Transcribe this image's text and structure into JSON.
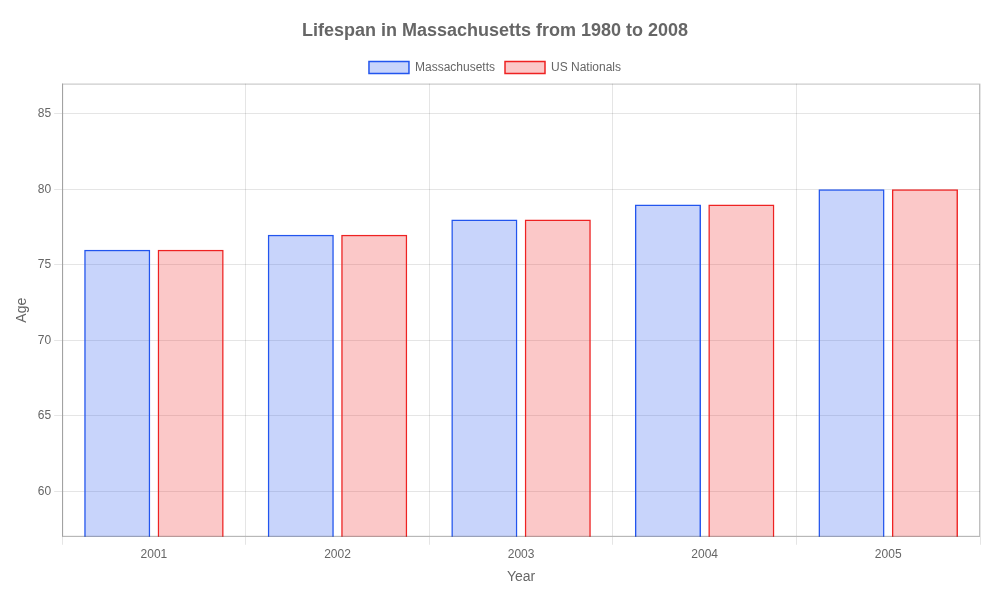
{
  "chart_data": {
    "type": "bar",
    "title": "Lifespan in Massachusetts from 1980 to 2008",
    "xlabel": "Year",
    "ylabel": "Age",
    "categories": [
      "2001",
      "2002",
      "2003",
      "2004",
      "2005"
    ],
    "series": [
      {
        "name": "Massachusetts",
        "color": "#2255ee",
        "values": [
          76,
          77,
          78,
          79,
          80
        ]
      },
      {
        "name": "US Nationals",
        "color": "#ee2222",
        "values": [
          76,
          77,
          78,
          79,
          80
        ]
      }
    ],
    "ylim": [
      57,
      87
    ],
    "yticks": [
      60,
      65,
      70,
      75,
      80,
      85
    ],
    "grid": true,
    "legend": "top"
  }
}
